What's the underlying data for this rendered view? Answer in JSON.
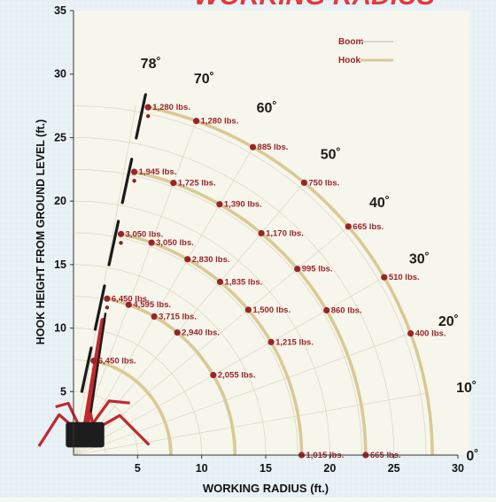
{
  "chart_data": {
    "type": "scatter",
    "title": "WORKING RADIUS",
    "xlabel": "WORKING RADIUS (ft.)",
    "ylabel": "HOOK HEIGHT FROM GROUND LEVEL (ft.)",
    "xlim": [
      0,
      30
    ],
    "ylim": [
      0,
      35
    ],
    "xticks": [
      5,
      10,
      15,
      20,
      25,
      30
    ],
    "yticks": [
      5,
      10,
      15,
      20,
      25,
      30,
      35
    ],
    "grid": true,
    "legend": {
      "placement": "top-right",
      "items": [
        {
          "label": "Boom",
          "color": "#c8c8c8"
        },
        {
          "label": "Hook",
          "color": "#d8c99a"
        }
      ]
    },
    "angle_labels": [
      "78˚",
      "70˚",
      "60˚",
      "50˚",
      "40˚",
      "30˚",
      "20˚",
      "10˚",
      "0˚"
    ],
    "series": [
      {
        "boom_length": 28.0,
        "points": [
          {
            "angle": 78,
            "x": 5.82,
            "y": 27.39,
            "load": "1,280 lbs."
          },
          {
            "angle": 70,
            "x": 9.58,
            "y": 26.31,
            "load": "1,280 lbs."
          },
          {
            "angle": 60,
            "x": 14.0,
            "y": 24.25,
            "load": "885 lbs."
          },
          {
            "angle": 50,
            "x": 18.0,
            "y": 21.45,
            "load": "750 lbs."
          },
          {
            "angle": 40,
            "x": 21.45,
            "y": 18.0,
            "load": "665 lbs."
          },
          {
            "angle": 30,
            "x": 24.25,
            "y": 14.0,
            "load": "510 lbs."
          },
          {
            "angle": 20,
            "x": 26.31,
            "y": 9.58,
            "load": "400 lbs."
          }
        ]
      },
      {
        "boom_length": 22.8,
        "points": [
          {
            "angle": 78,
            "x": 4.74,
            "y": 22.3,
            "load": "1,945 lbs."
          },
          {
            "angle": 70,
            "x": 7.8,
            "y": 21.43,
            "load": "1,725 lbs."
          },
          {
            "angle": 60,
            "x": 11.4,
            "y": 19.75,
            "load": "1,390 lbs."
          },
          {
            "angle": 50,
            "x": 14.66,
            "y": 17.47,
            "load": "1,170 lbs."
          },
          {
            "angle": 40,
            "x": 17.47,
            "y": 14.66,
            "load": "995 lbs."
          },
          {
            "angle": 30,
            "x": 19.75,
            "y": 11.4,
            "load": "860 lbs."
          },
          {
            "angle": 0,
            "x": 22.8,
            "y": 0.0,
            "load": "665 lbs."
          }
        ]
      },
      {
        "boom_length": 17.8,
        "points": [
          {
            "angle": 78,
            "x": 3.7,
            "y": 17.41,
            "load": "3,050 lbs."
          },
          {
            "angle": 70,
            "x": 6.09,
            "y": 16.73,
            "load": "3,050 lbs."
          },
          {
            "angle": 60,
            "x": 8.9,
            "y": 15.42,
            "load": "2,830 lbs."
          },
          {
            "angle": 50,
            "x": 11.44,
            "y": 13.64,
            "load": "1,835 lbs."
          },
          {
            "angle": 40,
            "x": 13.64,
            "y": 11.44,
            "load": "1,500 lbs."
          },
          {
            "angle": 30,
            "x": 15.42,
            "y": 8.9,
            "load": "1,215 lbs."
          },
          {
            "angle": 0,
            "x": 17.8,
            "y": 0.0,
            "load": "1,015 lbs."
          }
        ]
      },
      {
        "boom_length": 12.6,
        "points": [
          {
            "angle": 78,
            "x": 2.62,
            "y": 12.32,
            "load": "6,450 lbs."
          },
          {
            "angle": 70,
            "x": 4.31,
            "y": 11.84,
            "load": "4,595 lbs."
          },
          {
            "angle": 60,
            "x": 6.3,
            "y": 10.91,
            "load": "3,715 lbs."
          },
          {
            "angle": 50,
            "x": 8.1,
            "y": 9.65,
            "load": "2,940 lbs."
          },
          {
            "angle": 30,
            "x": 10.91,
            "y": 6.3,
            "load": "2,055 lbs."
          }
        ]
      },
      {
        "boom_length": 7.6,
        "points": [
          {
            "angle": 78,
            "x": 1.58,
            "y": 7.43,
            "load": "6,450 lbs."
          }
        ]
      }
    ]
  }
}
